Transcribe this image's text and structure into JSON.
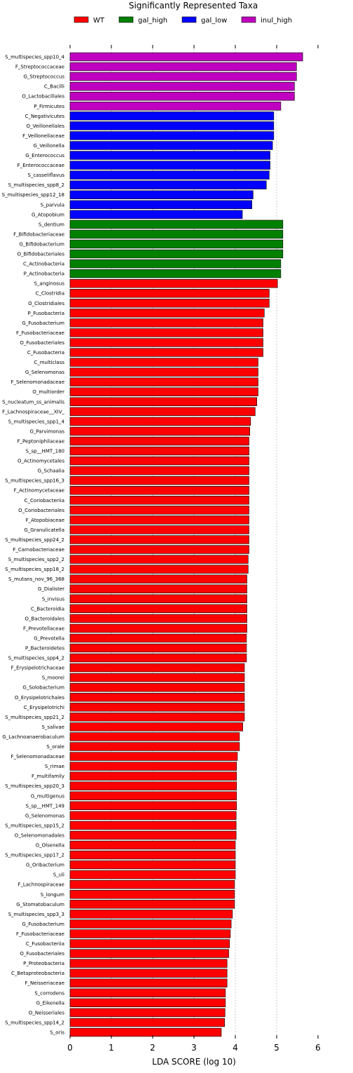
{
  "chart_data": {
    "type": "bar",
    "orientation": "horizontal",
    "title": "Significantly Represented Taxa",
    "xlabel": "LDA SCORE (log 10)",
    "ylabel": "",
    "xlim": [
      0,
      6
    ],
    "xticks": [
      "0",
      "1",
      "2",
      "3",
      "4",
      "5",
      "6"
    ],
    "grid": "vertical dotted",
    "legend_position": "top",
    "legend": [
      {
        "name": "WT",
        "color": "#ff0000"
      },
      {
        "name": "gal_high",
        "color": "#008000"
      },
      {
        "name": "gal_low",
        "color": "#0000ff"
      },
      {
        "name": "inul_high",
        "color": "#c000c0"
      }
    ],
    "bars": [
      {
        "label": "S_multispecies_spp10_4",
        "value": 5.63,
        "group": "inul_high"
      },
      {
        "label": "F_Streptococcaceae",
        "value": 5.48,
        "group": "inul_high"
      },
      {
        "label": "G_Streptococcus",
        "value": 5.48,
        "group": "inul_high"
      },
      {
        "label": "C_Bacilli",
        "value": 5.43,
        "group": "inul_high"
      },
      {
        "label": "O_Lactobacillales",
        "value": 5.43,
        "group": "inul_high"
      },
      {
        "label": "P_Firmicutes",
        "value": 5.1,
        "group": "inul_high"
      },
      {
        "label": "C_Negativicutes",
        "value": 4.93,
        "group": "gal_low"
      },
      {
        "label": "O_Veillonellales",
        "value": 4.93,
        "group": "gal_low"
      },
      {
        "label": "F_Veillonellaceae",
        "value": 4.93,
        "group": "gal_low"
      },
      {
        "label": "G_Veillonella",
        "value": 4.9,
        "group": "gal_low"
      },
      {
        "label": "G_Enterococcus",
        "value": 4.84,
        "group": "gal_low"
      },
      {
        "label": "F_Enterococcaceae",
        "value": 4.84,
        "group": "gal_low"
      },
      {
        "label": "S_casseliflavus",
        "value": 4.82,
        "group": "gal_low"
      },
      {
        "label": "S_multispecies_spp8_2",
        "value": 4.75,
        "group": "gal_low"
      },
      {
        "label": "S_multispecies_spp12_18",
        "value": 4.43,
        "group": "gal_low"
      },
      {
        "label": "S_parvula",
        "value": 4.4,
        "group": "gal_low"
      },
      {
        "label": "G_Atopobium",
        "value": 4.17,
        "group": "gal_low"
      },
      {
        "label": "S_dentium",
        "value": 5.15,
        "group": "gal_high"
      },
      {
        "label": "F_Bifidobacteriaceae",
        "value": 5.15,
        "group": "gal_high"
      },
      {
        "label": "G_Bifidobacterium",
        "value": 5.15,
        "group": "gal_high"
      },
      {
        "label": "O_Bifidobacteriales",
        "value": 5.15,
        "group": "gal_high"
      },
      {
        "label": "C_Actinobacteria",
        "value": 5.1,
        "group": "gal_high"
      },
      {
        "label": "P_Actinobacteria",
        "value": 5.1,
        "group": "gal_high"
      },
      {
        "label": "S_anginosus",
        "value": 5.02,
        "group": "WT"
      },
      {
        "label": "C_Clostridia",
        "value": 4.82,
        "group": "WT"
      },
      {
        "label": "O_Clostridiales",
        "value": 4.82,
        "group": "WT"
      },
      {
        "label": "P_Fusobacteria",
        "value": 4.7,
        "group": "WT"
      },
      {
        "label": "G_Fusobacterium",
        "value": 4.67,
        "group": "WT"
      },
      {
        "label": "F_Fusobacteriaceae",
        "value": 4.67,
        "group": "WT"
      },
      {
        "label": "O_Fusobacteriales",
        "value": 4.67,
        "group": "WT"
      },
      {
        "label": "C_Fusobacteria",
        "value": 4.67,
        "group": "WT"
      },
      {
        "label": "C_multiclass",
        "value": 4.55,
        "group": "WT"
      },
      {
        "label": "G_Selenomonas",
        "value": 4.55,
        "group": "WT"
      },
      {
        "label": "F_Selenomonadaceae",
        "value": 4.55,
        "group": "WT"
      },
      {
        "label": "O_multiorder",
        "value": 4.55,
        "group": "WT"
      },
      {
        "label": "S_nucleatum_ss_animalis",
        "value": 4.52,
        "group": "WT"
      },
      {
        "label": "F_Lachnospiraceae__XIV_",
        "value": 4.48,
        "group": "WT"
      },
      {
        "label": "S_multispecies_spp1_4",
        "value": 4.37,
        "group": "WT"
      },
      {
        "label": "G_Parvimonas",
        "value": 4.35,
        "group": "WT"
      },
      {
        "label": "F_Peptoniphilaceae",
        "value": 4.33,
        "group": "WT"
      },
      {
        "label": "S_sp__HMT_180",
        "value": 4.33,
        "group": "WT"
      },
      {
        "label": "O_Actinomycetales",
        "value": 4.33,
        "group": "WT"
      },
      {
        "label": "G_Schaalia",
        "value": 4.33,
        "group": "WT"
      },
      {
        "label": "S_multispecies_spp16_3",
        "value": 4.33,
        "group": "WT"
      },
      {
        "label": "F_Actinomycetaceae",
        "value": 4.33,
        "group": "WT"
      },
      {
        "label": "C_Coriobacteriia",
        "value": 4.33,
        "group": "WT"
      },
      {
        "label": "O_Coriobacteriales",
        "value": 4.33,
        "group": "WT"
      },
      {
        "label": "F_Atopobiaceae",
        "value": 4.33,
        "group": "WT"
      },
      {
        "label": "G_Granulicatella",
        "value": 4.33,
        "group": "WT"
      },
      {
        "label": "S_multispecies_spp24_2",
        "value": 4.33,
        "group": "WT"
      },
      {
        "label": "F_Carnobacteriaceae",
        "value": 4.33,
        "group": "WT"
      },
      {
        "label": "S_multispecies_spp2_2",
        "value": 4.31,
        "group": "WT"
      },
      {
        "label": "S_multispecies_spp18_2",
        "value": 4.31,
        "group": "WT"
      },
      {
        "label": "S_mutans_nov_96_368",
        "value": 4.28,
        "group": "WT"
      },
      {
        "label": "G_Dialister",
        "value": 4.28,
        "group": "WT"
      },
      {
        "label": "S_invisus",
        "value": 4.28,
        "group": "WT"
      },
      {
        "label": "C_Bacteroidia",
        "value": 4.28,
        "group": "WT"
      },
      {
        "label": "O_Bacteroidales",
        "value": 4.28,
        "group": "WT"
      },
      {
        "label": "F_Prevotellaceae",
        "value": 4.28,
        "group": "WT"
      },
      {
        "label": "G_Prevotella",
        "value": 4.27,
        "group": "WT"
      },
      {
        "label": "P_Bacteroidetes",
        "value": 4.27,
        "group": "WT"
      },
      {
        "label": "S_multispecies_spp4_2",
        "value": 4.27,
        "group": "WT"
      },
      {
        "label": "F_Erysipelotrichaceae",
        "value": 4.22,
        "group": "WT"
      },
      {
        "label": "S_moorei",
        "value": 4.22,
        "group": "WT"
      },
      {
        "label": "G_Solobacterium",
        "value": 4.22,
        "group": "WT"
      },
      {
        "label": "O_Erysipelotrichales",
        "value": 4.22,
        "group": "WT"
      },
      {
        "label": "C_Erysipelotrichi",
        "value": 4.22,
        "group": "WT"
      },
      {
        "label": "S_multispecies_spp21_2",
        "value": 4.22,
        "group": "WT"
      },
      {
        "label": "S_salivae",
        "value": 4.18,
        "group": "WT"
      },
      {
        "label": "G_Lachnoanaerobaculum",
        "value": 4.1,
        "group": "WT"
      },
      {
        "label": "S_orale",
        "value": 4.1,
        "group": "WT"
      },
      {
        "label": "F_Selenomonadaceae",
        "value": 4.05,
        "group": "WT"
      },
      {
        "label": "S_rimae",
        "value": 4.03,
        "group": "WT"
      },
      {
        "label": "F_multifamily",
        "value": 4.03,
        "group": "WT"
      },
      {
        "label": "S_multispecies_spp20_3",
        "value": 4.03,
        "group": "WT"
      },
      {
        "label": "G_multigenus",
        "value": 4.03,
        "group": "WT"
      },
      {
        "label": "S_sp__HMT_149",
        "value": 4.03,
        "group": "WT"
      },
      {
        "label": "G_Selenomonas",
        "value": 4.02,
        "group": "WT"
      },
      {
        "label": "S_multispecies_spp15_2",
        "value": 4.02,
        "group": "WT"
      },
      {
        "label": "O_Selenomonadales",
        "value": 4.02,
        "group": "WT"
      },
      {
        "label": "G_Olsenella",
        "value": 4.0,
        "group": "WT"
      },
      {
        "label": "S_multispecies_spp17_2",
        "value": 4.0,
        "group": "WT"
      },
      {
        "label": "G_Oribacterium",
        "value": 4.0,
        "group": "WT"
      },
      {
        "label": "S_uli",
        "value": 4.0,
        "group": "WT"
      },
      {
        "label": "F_Lachnospiraceae",
        "value": 3.98,
        "group": "WT"
      },
      {
        "label": "S_longum",
        "value": 3.98,
        "group": "WT"
      },
      {
        "label": "G_Stomatobaculum",
        "value": 3.98,
        "group": "WT"
      },
      {
        "label": "S_multispecies_spp3_3",
        "value": 3.93,
        "group": "WT"
      },
      {
        "label": "G_Fusobacterium",
        "value": 3.9,
        "group": "WT"
      },
      {
        "label": "F_Fusobacteriaceae",
        "value": 3.88,
        "group": "WT"
      },
      {
        "label": "C_Fusobacteriia",
        "value": 3.86,
        "group": "WT"
      },
      {
        "label": "O_Fusobacteriales",
        "value": 3.84,
        "group": "WT"
      },
      {
        "label": "P_Proteobacteria",
        "value": 3.8,
        "group": "WT"
      },
      {
        "label": "C_Betaproteobacteria",
        "value": 3.8,
        "group": "WT"
      },
      {
        "label": "F_Neisseriaceae",
        "value": 3.8,
        "group": "WT"
      },
      {
        "label": "S_corrodens",
        "value": 3.76,
        "group": "WT"
      },
      {
        "label": "G_Eikenella",
        "value": 3.76,
        "group": "WT"
      },
      {
        "label": "O_Neisseriales",
        "value": 3.75,
        "group": "WT"
      },
      {
        "label": "S_multispecies_spp14_2",
        "value": 3.74,
        "group": "WT"
      },
      {
        "label": "S_oris",
        "value": 3.66,
        "group": "WT"
      }
    ]
  }
}
